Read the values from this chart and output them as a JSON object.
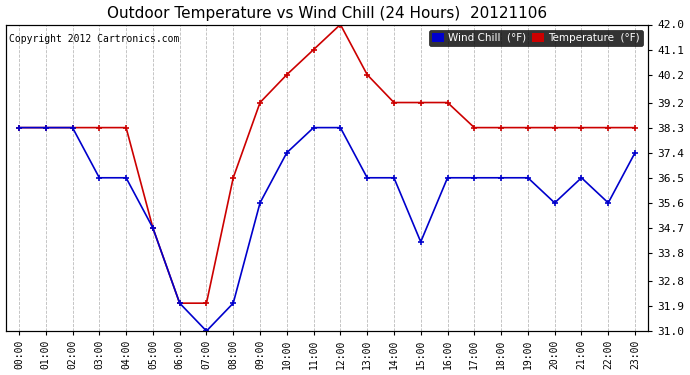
{
  "title": "Outdoor Temperature vs Wind Chill (24 Hours)  20121106",
  "copyright": "Copyright 2012 Cartronics.com",
  "ylabel_right_ticks": [
    31.0,
    31.9,
    32.8,
    33.8,
    34.7,
    35.6,
    36.5,
    37.4,
    38.3,
    39.2,
    40.2,
    41.1,
    42.0
  ],
  "ylim": [
    31.0,
    42.0
  ],
  "hours": [
    "00:00",
    "01:00",
    "02:00",
    "03:00",
    "04:00",
    "05:00",
    "06:00",
    "07:00",
    "08:00",
    "09:00",
    "10:00",
    "11:00",
    "12:00",
    "13:00",
    "14:00",
    "15:00",
    "16:00",
    "17:00",
    "18:00",
    "19:00",
    "20:00",
    "21:00",
    "22:00",
    "23:00"
  ],
  "temperature": [
    38.3,
    38.3,
    38.3,
    38.3,
    38.3,
    34.7,
    32.0,
    32.0,
    36.5,
    39.2,
    40.2,
    41.1,
    42.0,
    40.2,
    39.2,
    39.2,
    39.2,
    38.3,
    38.3,
    38.3,
    38.3,
    38.3,
    38.3,
    38.3
  ],
  "wind_chill": [
    38.3,
    38.3,
    38.3,
    36.5,
    36.5,
    34.7,
    32.0,
    31.0,
    32.0,
    35.6,
    37.4,
    38.3,
    38.3,
    36.5,
    36.5,
    34.2,
    36.5,
    36.5,
    36.5,
    36.5,
    35.6,
    36.5,
    35.6,
    37.4
  ],
  "temp_color": "#cc0000",
  "wind_chill_color": "#0000cc",
  "background_color": "#ffffff",
  "grid_color": "#bbbbbb",
  "title_fontsize": 11,
  "legend_wind_label": "Wind Chill  (°F)",
  "legend_temp_label": "Temperature  (°F)"
}
